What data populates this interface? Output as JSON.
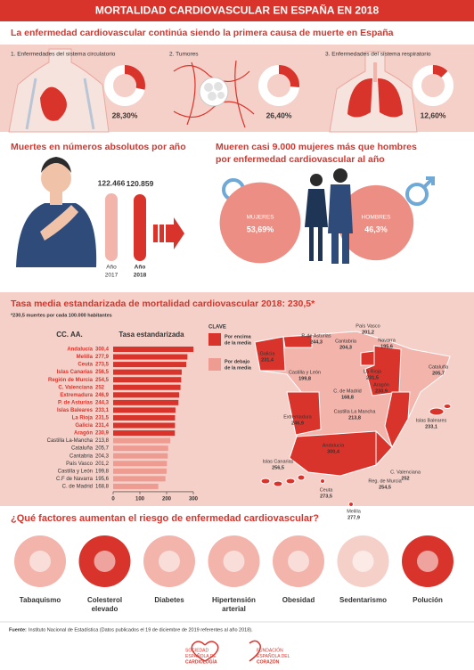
{
  "header": {
    "title": "MORTALIDAD CARDIOVASCULAR EN ESPAÑA EN 2018"
  },
  "causes": {
    "title": "La enfermedad cardiovascular continúa siendo la primera causa de muerte en España",
    "type": "pie",
    "color": "#d9342b",
    "items": [
      {
        "label": "1. Enfermedades del sistema circulatorio",
        "value": 28.3,
        "value_label": "28,30%"
      },
      {
        "label": "2. Tumores",
        "value": 26.4,
        "value_label": "26,40%"
      },
      {
        "label": "3. Enfermedades del sistema respiratorio",
        "value": 12.6,
        "value_label": "12,60%"
      }
    ]
  },
  "deaths": {
    "title": "Muertes en números absolutos por año",
    "type": "bar",
    "categories": [
      [
        "Año",
        "2017"
      ],
      [
        "Año",
        "2018"
      ]
    ],
    "values": [
      122466,
      120859
    ],
    "value_labels": [
      "122.466",
      "120.859"
    ],
    "colors": [
      "#f2b4ab",
      "#d9342b"
    ]
  },
  "gender": {
    "title": [
      "Mueren casi 9.000 mujeres más que hombres",
      "por enfermedad cardiovascular al año"
    ],
    "categories": [
      "MUJERES",
      "HOMBRES"
    ],
    "values": [
      53.69,
      46.3
    ],
    "value_labels": [
      "53,69%",
      "46,3%"
    ],
    "color": "#ec8e84"
  },
  "chart_data": {
    "type": "bar",
    "orientation": "horizontal",
    "title": "Tasa media estandarizada de mortalidad cardiovascular 2018: 230,5*",
    "note": "*230,5 muertes por cada 100.000 habitantes",
    "category_header": "CC. AA.",
    "value_header": "Tasa estandarizada",
    "average": 230.5,
    "above_color": "#d9342b",
    "below_color": "#ee9b92",
    "categories": [
      "Andalucía",
      "Melilla",
      "Ceuta",
      "Islas Canarias",
      "Región de Murcia",
      "C. Valenciana",
      "Extremadura",
      "P. de Asturias",
      "Islas Baleares",
      "La Rioja",
      "Galicia",
      "Aragón",
      "Castilla La-Mancha",
      "Cataluña",
      "Cantabria",
      "País Vasco",
      "Castilla y León",
      "C.F de Navarra",
      "C. de Madrid"
    ],
    "values": [
      300.4,
      277.9,
      273.5,
      256.5,
      254.5,
      252,
      246.9,
      244.3,
      233.1,
      231.5,
      231.4,
      230.9,
      213.8,
      205.7,
      204.3,
      201.2,
      199.8,
      195.6,
      168.8
    ],
    "value_labels": [
      "300,4",
      "277,9",
      "273,5",
      "256,5",
      "254,5",
      "252",
      "246,9",
      "244,3",
      "233,1",
      "231,5",
      "231,4",
      "230,9",
      "213,8",
      "205,7",
      "204,3",
      "201,2",
      "199,8",
      "195,6",
      "168,8"
    ],
    "xlim": [
      0,
      300
    ],
    "xticks": [
      0,
      100,
      200,
      300
    ],
    "legend": {
      "title": "CLAVE",
      "above": [
        "Por encima",
        "de la media"
      ],
      "below": [
        "Por debajo",
        "de la media"
      ]
    }
  },
  "map": {
    "labels": [
      {
        "name": "P. de Asturias",
        "value": "244,3"
      },
      {
        "name": "País Vasco",
        "value": "201,2"
      },
      {
        "name": "Cantabria",
        "value": "204,3"
      },
      {
        "name": "Navarra",
        "value": "195,6"
      },
      {
        "name": "Galicia",
        "value": "231,4"
      },
      {
        "name": "Castilla y León",
        "value": "199,8"
      },
      {
        "name": "La Rioja",
        "value": "231,5"
      },
      {
        "name": "Aragón",
        "value": "230,9"
      },
      {
        "name": "C. de Madrid",
        "value": "168,8"
      },
      {
        "name": "Cataluña",
        "value": "205,7"
      },
      {
        "name": "Extremadura",
        "value": "246,9"
      },
      {
        "name": "Castilla La Mancha",
        "value": "213,8"
      },
      {
        "name": "Islas Baleares",
        "value": "233,1"
      },
      {
        "name": "Andalucía",
        "value": "300,4"
      },
      {
        "name": "C. Valenciana",
        "value": "252"
      },
      {
        "name": "Reg. de Murcia",
        "value": "254,5"
      },
      {
        "name": "Islas Canarias",
        "value": "256,5"
      },
      {
        "name": "Ceuta",
        "value": "273,5"
      },
      {
        "name": "Melilla",
        "value": "277,9"
      }
    ]
  },
  "factors": {
    "title": "¿Qué factores aumentan el riesgo de enfermedad cardiovascular?",
    "items": [
      [
        "Tabaquismo"
      ],
      [
        "Colesterol",
        "elevado"
      ],
      [
        "Diabetes"
      ],
      [
        "Hipertensión",
        "arterial"
      ],
      [
        "Obesidad"
      ],
      [
        "Sedentarismo"
      ],
      [
        "Polución"
      ]
    ]
  },
  "footer": {
    "source_label": "Fuente:",
    "source": "Instituto Nacional de Estadística (Datos publicados el 19 de diciembre de 2019 referentes al año 2018).",
    "logos": [
      [
        "SOCIEDAD",
        "ESPAÑOLA DE",
        "CARDIOLOGÍA"
      ],
      [
        "FUNDACIÓN",
        "ESPAÑOLA DEL",
        "CORAZÓN"
      ]
    ]
  }
}
